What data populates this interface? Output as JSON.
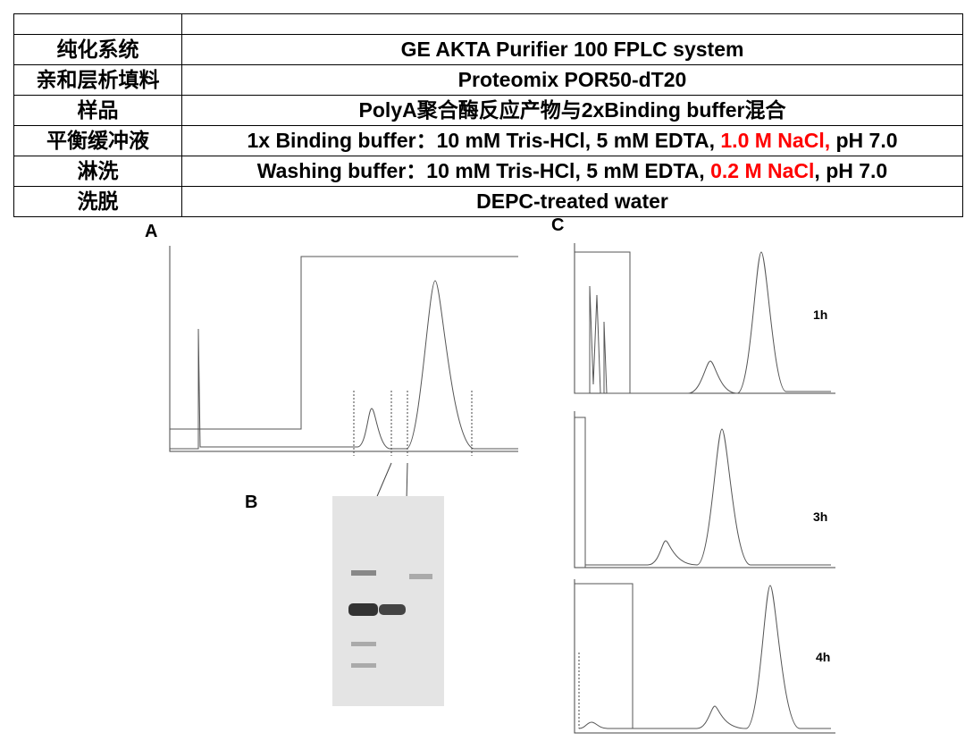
{
  "table": {
    "rows": [
      {
        "label": "纯化系统",
        "value": [
          {
            "text": "GE AKTA Purifier 100 FPLC system"
          }
        ]
      },
      {
        "label": "亲和层析填料",
        "value": [
          {
            "text": "Proteomix POR50-dT20"
          }
        ]
      },
      {
        "label": "样品",
        "value": [
          {
            "text": "PolyA聚合酶反应产物与2xBinding buffer混合"
          }
        ]
      },
      {
        "label": "平衡缓冲液",
        "value": [
          {
            "text": "1x Binding buffer：10 mM Tris-HCl, 5 mM EDTA, "
          },
          {
            "text": "1.0 M NaCl,",
            "color": "#ff0000"
          },
          {
            "text": " pH 7.0"
          }
        ]
      },
      {
        "label": "淋洗",
        "value": [
          {
            "text": "Washing buffer：10 mM Tris-HCl, 5 mM EDTA, "
          },
          {
            "text": "0.2 M NaCl",
            "color": "#ff0000"
          },
          {
            "text": ", pH 7.0"
          }
        ]
      },
      {
        "label": "洗脱",
        "value": [
          {
            "text": "DEPC-treated water"
          }
        ]
      }
    ]
  },
  "figure": {
    "panels": [
      "A",
      "B",
      "C"
    ],
    "chromatogram_labels": [
      "1h",
      "3h",
      "4h"
    ]
  }
}
